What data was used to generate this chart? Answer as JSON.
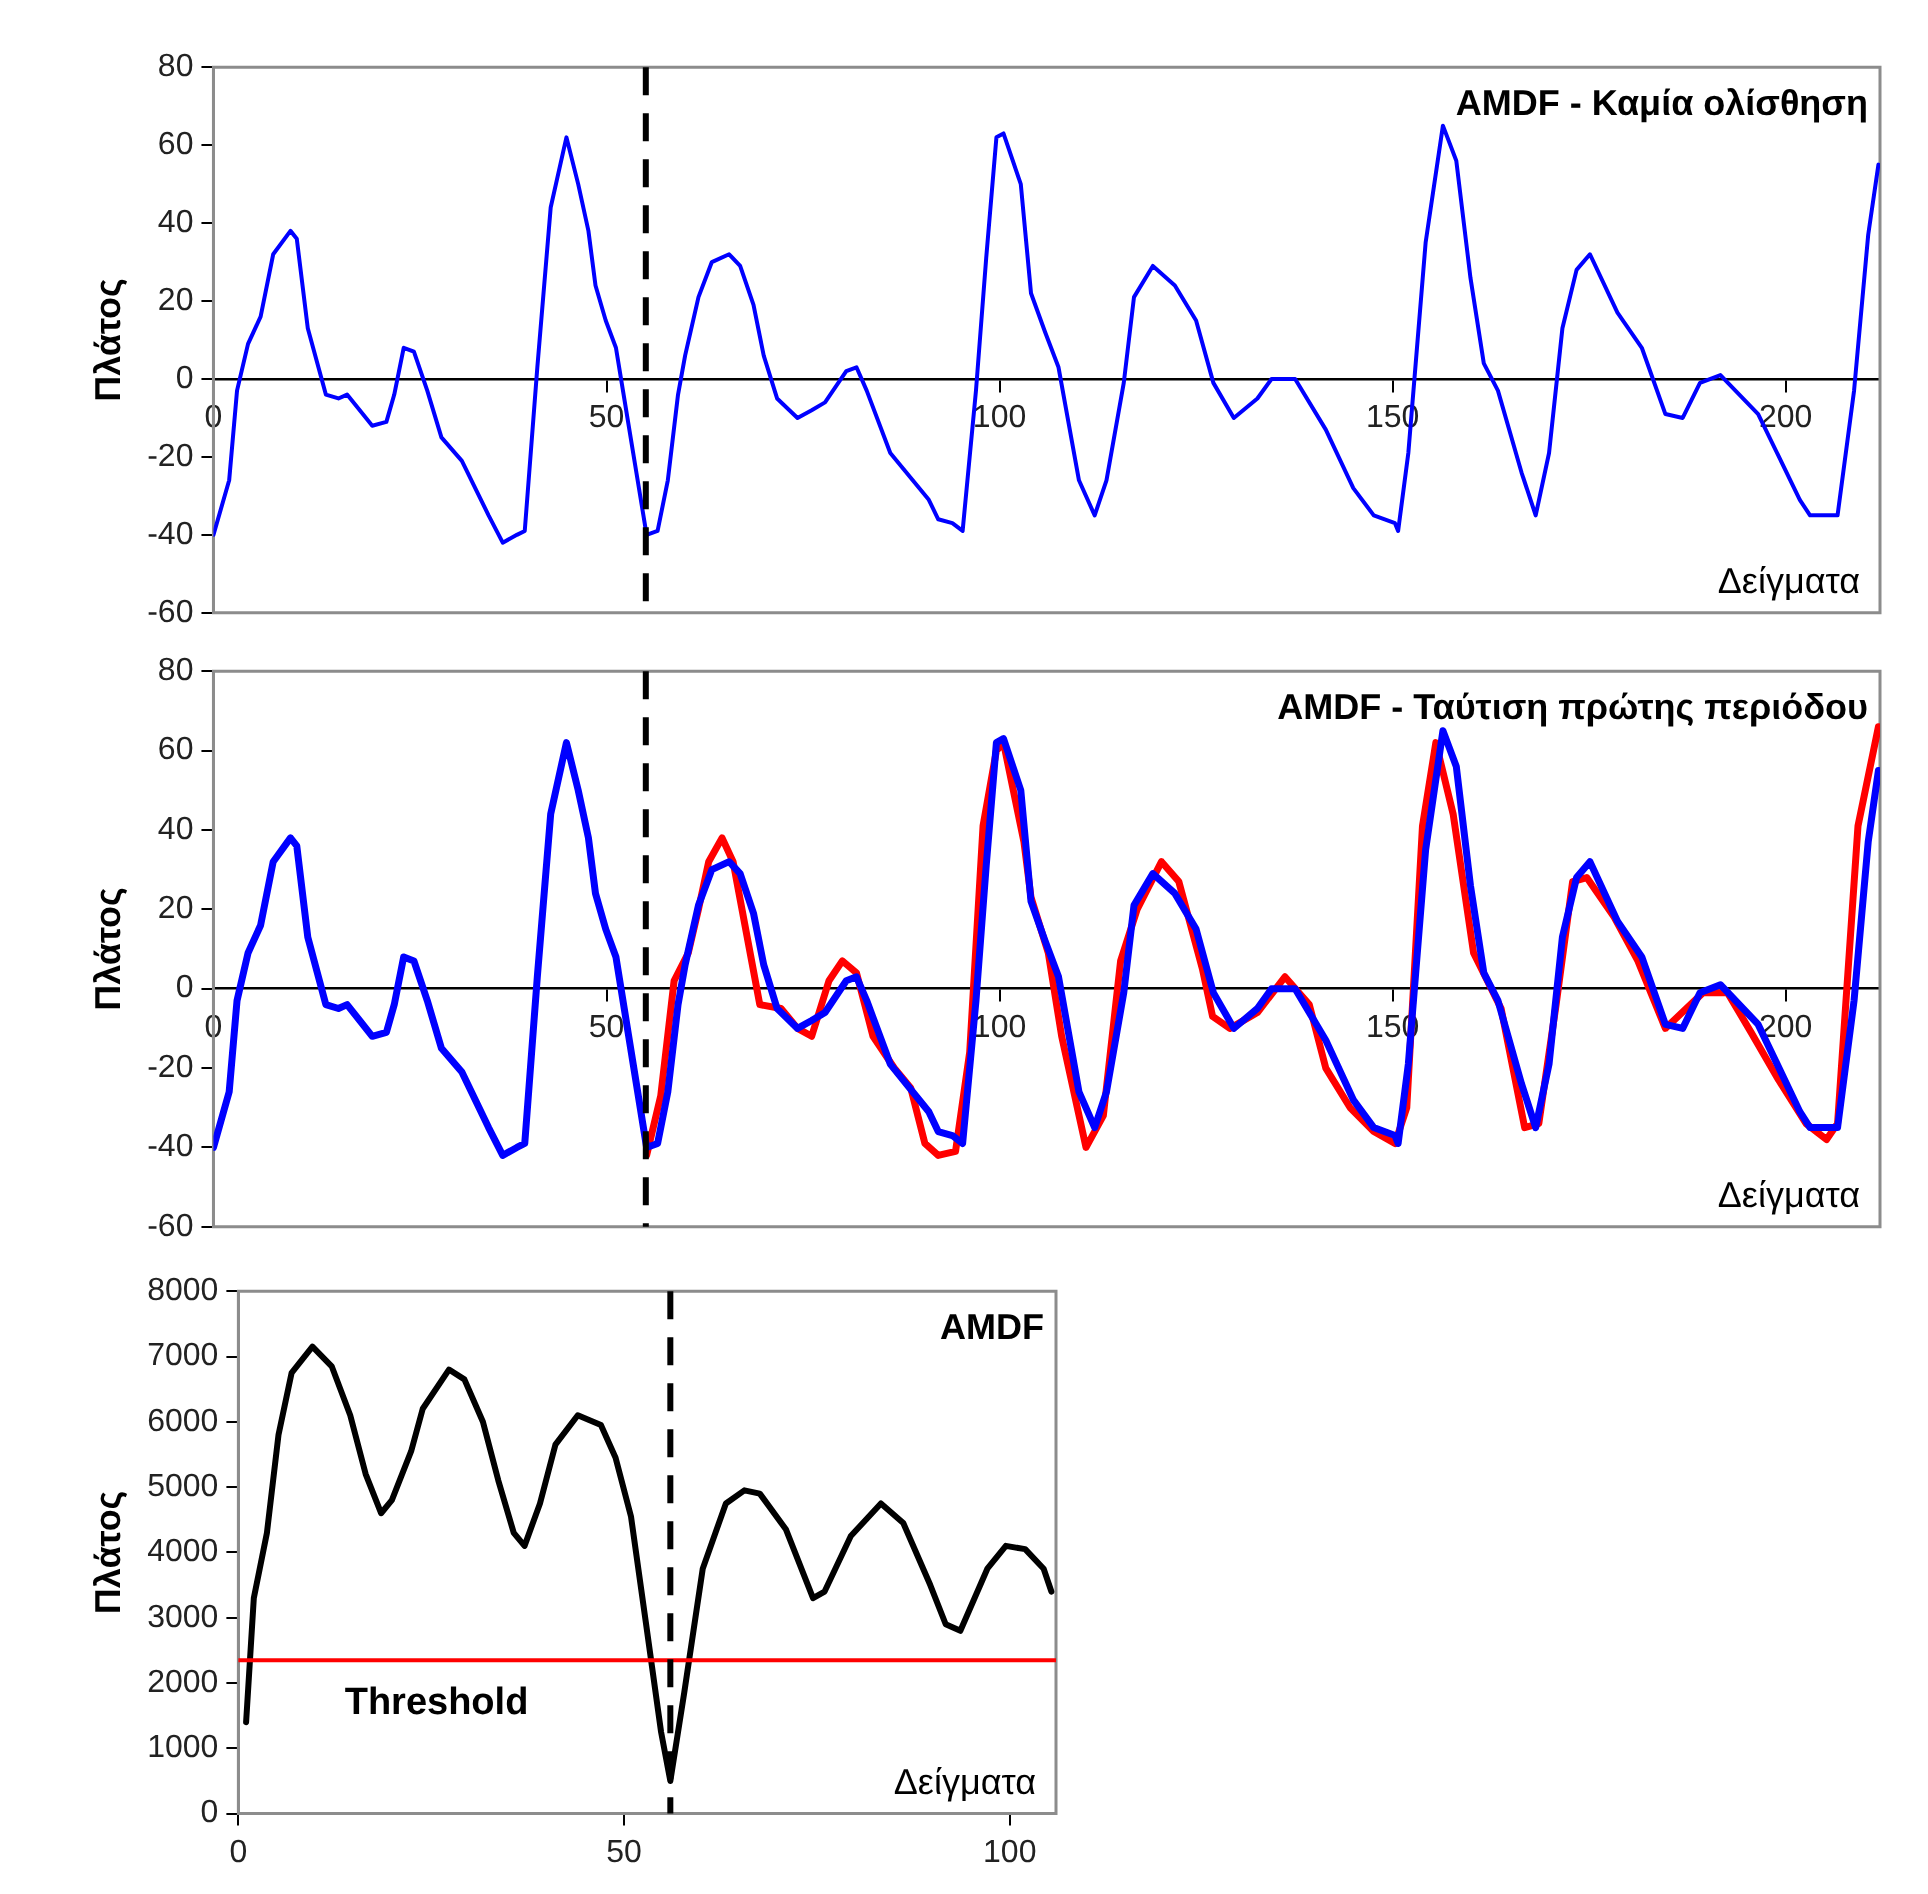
{
  "chart_data": [
    {
      "type": "line",
      "ref_lines": [
        {
          "axis": "x",
          "value": 55,
          "color": "#000000",
          "line_style": "dashed"
        }
      ],
      "title": "AMDF - Καμία ολίσθηση",
      "xlabel": "Δείγματα",
      "ylabel": "Πλάτος",
      "xlim": [
        0,
        212
      ],
      "xticks": [
        0,
        50,
        100,
        150,
        200
      ],
      "ylim": [
        -60,
        80
      ],
      "yticks": [
        -60,
        -40,
        -20,
        0,
        20,
        40,
        60,
        80
      ],
      "grid": false,
      "legend": false,
      "marker": "none",
      "series": [
        {
          "color": "#0000ff",
          "x": [
            0,
            2,
            3,
            4.4,
            6,
            7.6,
            9.8,
            10.6,
            12,
            14.3,
            15.9,
            17,
            20.2,
            22,
            23,
            24.2,
            25.5,
            27.2,
            29,
            31.6,
            35,
            36.8,
            38.6,
            39.6,
            41.2,
            42.9,
            44.9,
            46.4,
            47.7,
            48.6,
            49.9,
            51.2,
            52.5,
            53.8,
            55.1,
            56.5,
            57.8,
            59.1,
            60,
            61.7,
            63.4,
            65.6,
            67,
            68.7,
            70,
            71.7,
            74.3,
            76.1,
            77.8,
            80.5,
            81.8,
            83.1,
            86.1,
            91,
            92.2,
            94,
            95.3,
            97,
            98.3,
            99.6,
            100.5,
            102.7,
            104,
            105.8,
            107.5,
            110.1,
            112.1,
            113.6,
            115.8,
            117.1,
            119.5,
            122.3,
            125,
            127.2,
            129.8,
            132.8,
            134.6,
            137.6,
            141.5,
            145,
            147.6,
            150.3,
            150.7,
            152,
            154.2,
            156.4,
            158.1,
            159.9,
            161.6,
            163.4,
            166.4,
            168.2,
            169.9,
            171.6,
            173.4,
            175.1,
            178.6,
            181.7,
            184.7,
            186.9,
            189.1,
            191.7,
            196.5,
            201.8,
            203.1,
            206.6,
            208.7,
            210.5,
            211.8
          ],
          "values": [
            -40,
            -26,
            -3,
            9,
            16,
            32,
            38,
            36,
            13,
            -4,
            -5,
            -4,
            -12,
            -11,
            -4,
            8,
            7,
            -3,
            -15,
            -21,
            -35,
            -42,
            -40,
            -39,
            3,
            44,
            62,
            50,
            38,
            24,
            15,
            8,
            -8,
            -24,
            -40,
            -39,
            -26,
            -4,
            6,
            21,
            30,
            32,
            29,
            19,
            6,
            -5,
            -10,
            -8,
            -6,
            2,
            3,
            -3,
            -19,
            -31,
            -36,
            -37,
            -39,
            -3,
            31,
            62,
            63,
            50,
            22,
            12,
            3,
            -26,
            -35,
            -26,
            -1,
            21,
            29,
            24,
            15,
            -1,
            -10,
            -5,
            0,
            0,
            -13,
            -28,
            -35,
            -37,
            -39,
            -19,
            35,
            65,
            56,
            26,
            4,
            -3,
            -24,
            -35,
            -19,
            13,
            28,
            32,
            17,
            8,
            -9,
            -10,
            -1,
            1,
            -9,
            -31,
            -35,
            -35,
            -3,
            37,
            55
          ]
        }
      ]
    },
    {
      "type": "line",
      "ref_lines": [
        {
          "axis": "x",
          "value": 55,
          "color": "#000000",
          "line_style": "dashed"
        }
      ],
      "title": "AMDF - Ταύτιση πρώτης περιόδου",
      "xlabel": "Δείγματα",
      "ylabel": "Πλάτος",
      "xlim": [
        0,
        212
      ],
      "xticks": [
        0,
        50,
        100,
        150,
        200
      ],
      "ylim": [
        -60,
        80
      ],
      "yticks": [
        -60,
        -40,
        -20,
        0,
        20,
        40,
        60,
        80
      ],
      "grid": false,
      "legend": false,
      "marker": "none",
      "series": [
        {
          "color": "#0000ff",
          "x": [
            0,
            2,
            3,
            4.4,
            6,
            7.6,
            9.8,
            10.6,
            12,
            14.3,
            15.9,
            17,
            20.2,
            22,
            23,
            24.2,
            25.5,
            27.2,
            29,
            31.6,
            35,
            36.8,
            38.6,
            39.6,
            41.2,
            42.9,
            44.9,
            46.4,
            47.7,
            48.6,
            49.9,
            51.2,
            52.5,
            53.8,
            55.1,
            56.5,
            57.8,
            59.1,
            60,
            61.7,
            63.4,
            65.6,
            67,
            68.7,
            70,
            71.7,
            74.3,
            76.1,
            77.8,
            80.5,
            81.8,
            83.1,
            86.1,
            91,
            92.2,
            94,
            95.3,
            97,
            98.3,
            99.6,
            100.5,
            102.7,
            104,
            105.8,
            107.5,
            110.1,
            112.1,
            113.6,
            115.8,
            117.1,
            119.5,
            122.3,
            125,
            127.2,
            129.8,
            132.8,
            134.6,
            137.6,
            141.5,
            145,
            147.6,
            150.3,
            150.7,
            152,
            154.2,
            156.4,
            158.1,
            159.9,
            161.6,
            163.4,
            166.4,
            168.2,
            169.9,
            171.6,
            173.4,
            175.1,
            178.6,
            181.7,
            184.7,
            186.9,
            189.1,
            191.7,
            196.5,
            201.8,
            203.1,
            206.6,
            208.7,
            210.5,
            211.8
          ],
          "values": [
            -40,
            -26,
            -3,
            9,
            16,
            32,
            38,
            36,
            13,
            -4,
            -5,
            -4,
            -12,
            -11,
            -4,
            8,
            7,
            -3,
            -15,
            -21,
            -35,
            -42,
            -40,
            -39,
            3,
            44,
            62,
            50,
            38,
            24,
            15,
            8,
            -8,
            -24,
            -40,
            -39,
            -26,
            -4,
            6,
            21,
            30,
            32,
            29,
            19,
            6,
            -5,
            -10,
            -8,
            -6,
            2,
            3,
            -3,
            -19,
            -31,
            -36,
            -37,
            -39,
            -3,
            31,
            62,
            63,
            50,
            22,
            12,
            3,
            -26,
            -35,
            -26,
            -1,
            21,
            29,
            24,
            15,
            -1,
            -10,
            -5,
            0,
            0,
            -13,
            -28,
            -35,
            -37,
            -39,
            -19,
            35,
            65,
            56,
            26,
            4,
            -3,
            -24,
            -35,
            -19,
            13,
            28,
            32,
            17,
            8,
            -9,
            -10,
            -1,
            1,
            -9,
            -31,
            -35,
            -35,
            -3,
            37,
            55
          ]
        },
        {
          "color": "#ff0000",
          "x": [
            55.1,
            56.9,
            58.6,
            60.4,
            61.7,
            63,
            64.7,
            66.1,
            67.8,
            69.5,
            72.2,
            74.3,
            76.1,
            78.3,
            80,
            81.8,
            83.9,
            86.6,
            88.7,
            90.5,
            92.2,
            94.4,
            96.2,
            97.9,
            99.6,
            100.5,
            103.1,
            104,
            106.2,
            107.9,
            111,
            113.2,
            115.4,
            117.5,
            120.6,
            122.8,
            125.8,
            127.1,
            129.3,
            132.8,
            136.3,
            139.4,
            141.5,
            144.6,
            147.6,
            150.3,
            151.8,
            153.8,
            155.5,
            157.7,
            160.3,
            163.8,
            166.8,
            168.6,
            170.8,
            172.9,
            174.7,
            178.2,
            181.2,
            184.7,
            189.5,
            192.6,
            195.6,
            199.1,
            202.6,
            205.2,
            206.6,
            209.2,
            211.8
          ],
          "values": [
            -42,
            -27,
            2,
            9,
            20,
            32,
            38,
            32,
            14,
            -4,
            -5,
            -10,
            -12,
            2,
            7,
            4,
            -12,
            -20,
            -25,
            -39,
            -42,
            -41,
            -16,
            41,
            60,
            62,
            37,
            23,
            9,
            -12,
            -40,
            -32,
            7,
            20,
            32,
            27,
            5,
            -7,
            -10,
            -6,
            3,
            -4,
            -20,
            -30,
            -36,
            -39,
            -30,
            41,
            62,
            44,
            9,
            -5,
            -35,
            -34,
            -4,
            27,
            28,
            18,
            7,
            -10,
            -1,
            -1,
            -11,
            -23,
            -34,
            -38,
            -34,
            41,
            66
          ]
        }
      ]
    },
    {
      "type": "line",
      "title": "AMDF",
      "xlabel": "Δείγματα",
      "ylabel": "Πλάτος",
      "xlim": [
        0,
        106
      ],
      "xticks": [
        0,
        50,
        100
      ],
      "ylim": [
        0,
        8000
      ],
      "yticks": [
        0,
        1000,
        2000,
        3000,
        4000,
        5000,
        6000,
        7000,
        8000
      ],
      "grid": false,
      "legend": false,
      "marker": "none",
      "ref_lines": [
        {
          "axis": "y",
          "value": 2350,
          "label": "Threshold",
          "color": "#ff0000"
        },
        {
          "axis": "x",
          "value": 56,
          "color": "#000000",
          "line_style": "dashed"
        }
      ],
      "series": [
        {
          "color": "#000000",
          "x": [
            1,
            2,
            3.7,
            5.2,
            6.9,
            9.6,
            12.1,
            14.5,
            16.5,
            18.5,
            19.9,
            22.4,
            23.9,
            27.3,
            29.3,
            31.7,
            33.7,
            35.7,
            37.1,
            39.1,
            41.1,
            44,
            47,
            48.9,
            50.9,
            52.8,
            54.8,
            56,
            57.8,
            60.2,
            63.2,
            65.6,
            67.6,
            71,
            74.5,
            76,
            79.4,
            83.3,
            86.2,
            89.7,
            91.7,
            93.6,
            97.1,
            99.5,
            102,
            104.4,
            105.4
          ],
          "values": [
            1400,
            3300,
            4300,
            5800,
            6750,
            7150,
            6850,
            6100,
            5200,
            4600,
            4800,
            5550,
            6200,
            6800,
            6650,
            6000,
            5100,
            4300,
            4100,
            4750,
            5650,
            6100,
            5950,
            5450,
            4550,
            2950,
            1250,
            500,
            1850,
            3750,
            4750,
            4950,
            4900,
            4350,
            3300,
            3400,
            4250,
            4750,
            4450,
            3500,
            2900,
            2800,
            3750,
            4100,
            4050,
            3750,
            3400
          ]
        }
      ]
    }
  ]
}
